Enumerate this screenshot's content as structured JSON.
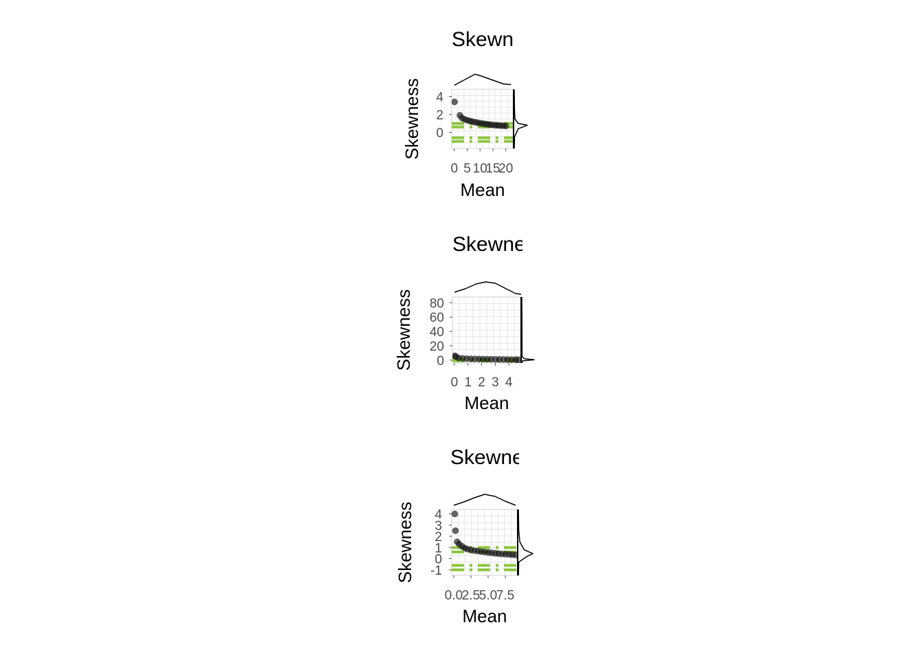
{
  "chart_data": [
    {
      "type": "scatter",
      "title": "Skewness",
      "xlabel": "Mean",
      "ylabel": "Skewness",
      "xlim": [
        -1,
        23
      ],
      "ylim": [
        -1.8,
        4.8
      ],
      "xticks": [
        0,
        5,
        10,
        15,
        20
      ],
      "xtick_labels": [
        "0",
        "5",
        "10",
        "15",
        "20"
      ],
      "yticks": [
        0,
        2,
        4
      ],
      "ytick_labels": [
        "0",
        "2",
        "4"
      ],
      "grid": true,
      "points": [
        [
          0.1,
          3.4
        ],
        [
          2.2,
          1.9
        ],
        [
          3,
          1.6
        ],
        [
          4,
          1.45
        ],
        [
          5,
          1.35
        ],
        [
          6,
          1.28
        ],
        [
          7,
          1.2
        ],
        [
          8,
          1.14
        ],
        [
          9,
          1.08
        ],
        [
          10,
          1.02
        ],
        [
          11,
          0.98
        ],
        [
          12,
          0.94
        ],
        [
          13,
          0.9
        ],
        [
          14,
          0.86
        ],
        [
          15,
          0.82
        ],
        [
          16,
          0.8
        ],
        [
          17,
          0.78
        ],
        [
          18,
          0.76
        ],
        [
          19,
          0.74
        ],
        [
          20,
          0.72
        ]
      ],
      "reference_bands": [
        {
          "y": 1.0,
          "color": "#8dc63f"
        },
        {
          "y": 0.6,
          "color": "#8dc63f"
        },
        {
          "y": -0.6,
          "color": "#8dc63f"
        },
        {
          "y": -1.0,
          "color": "#8dc63f"
        }
      ],
      "marginal_x_density": [
        [
          0,
          0.2
        ],
        [
          2,
          0.4
        ],
        [
          5,
          0.7
        ],
        [
          8,
          1.0
        ],
        [
          10,
          0.9
        ],
        [
          13,
          0.7
        ],
        [
          16,
          0.5
        ],
        [
          19,
          0.3
        ],
        [
          22,
          0.25
        ]
      ],
      "marginal_y_density": [
        [
          -1.8,
          0.0
        ],
        [
          -0.5,
          0.02
        ],
        [
          0.4,
          0.3
        ],
        [
          0.8,
          1.0
        ],
        [
          1.0,
          0.3
        ],
        [
          1.5,
          0.05
        ],
        [
          2.5,
          0.02
        ],
        [
          4.8,
          0.0
        ]
      ]
    },
    {
      "type": "scatter",
      "title": "Skewness",
      "xlabel": "Mean",
      "ylabel": "Skewness",
      "xlim": [
        -0.15,
        4.9
      ],
      "ylim": [
        -4,
        88
      ],
      "xticks": [
        0,
        1,
        2,
        3,
        4
      ],
      "xtick_labels": [
        "0",
        "1",
        "2",
        "3",
        "4"
      ],
      "yticks": [
        0,
        20,
        40,
        60,
        80
      ],
      "ytick_labels": [
        "0",
        "20",
        "40",
        "60",
        "80"
      ],
      "grid": true,
      "points": [
        [
          0.03,
          6.0
        ],
        [
          0.1,
          5.0
        ],
        [
          0.3,
          3.0
        ],
        [
          0.6,
          2.5
        ],
        [
          0.9,
          2.0
        ],
        [
          1.2,
          1.8
        ],
        [
          1.5,
          1.6
        ],
        [
          1.8,
          1.5
        ],
        [
          2.1,
          1.4
        ],
        [
          2.4,
          1.3
        ],
        [
          2.7,
          1.2
        ],
        [
          3.0,
          1.1
        ],
        [
          3.3,
          1.0
        ],
        [
          3.6,
          0.9
        ],
        [
          3.9,
          0.8
        ],
        [
          4.2,
          0.7
        ],
        [
          4.5,
          0.6
        ],
        [
          4.7,
          0.5
        ]
      ],
      "reference_bands": [
        {
          "y": 1.0,
          "color": "#8dc63f"
        },
        {
          "y": -1.0,
          "color": "#8dc63f"
        }
      ],
      "marginal_x_density": [
        [
          0,
          0.25
        ],
        [
          0.8,
          0.5
        ],
        [
          1.6,
          0.85
        ],
        [
          2.3,
          1.0
        ],
        [
          3.0,
          0.9
        ],
        [
          3.8,
          0.5
        ],
        [
          4.5,
          0.15
        ],
        [
          4.9,
          0.1
        ]
      ],
      "marginal_y_density": [
        [
          -4,
          0.0
        ],
        [
          -1,
          0.05
        ],
        [
          0.5,
          1.0
        ],
        [
          2,
          0.2
        ],
        [
          5,
          0.02
        ],
        [
          88,
          0.0
        ]
      ]
    },
    {
      "type": "scatter",
      "title": "Skewness",
      "xlabel": "Mean",
      "ylabel": "Skewness",
      "xlim": [
        -0.3,
        9.3
      ],
      "ylim": [
        -1.5,
        4.4
      ],
      "xticks": [
        0,
        2.5,
        5,
        7.5
      ],
      "xtick_labels": [
        "0.0",
        "2.5",
        "5.0",
        "7.5"
      ],
      "yticks": [
        -1,
        0,
        1,
        2,
        3,
        4
      ],
      "ytick_labels": [
        "-1",
        "0",
        "1",
        "2",
        "3",
        "4"
      ],
      "grid": true,
      "points": [
        [
          0.15,
          4.0
        ],
        [
          0.25,
          2.5
        ],
        [
          0.5,
          1.5
        ],
        [
          0.8,
          1.3
        ],
        [
          1.2,
          1.1
        ],
        [
          1.6,
          0.95
        ],
        [
          2.0,
          0.85
        ],
        [
          2.5,
          0.78
        ],
        [
          3.0,
          0.72
        ],
        [
          3.5,
          0.68
        ],
        [
          4.0,
          0.63
        ],
        [
          4.5,
          0.6
        ],
        [
          5.0,
          0.55
        ],
        [
          5.5,
          0.52
        ],
        [
          6.0,
          0.48
        ],
        [
          6.5,
          0.45
        ],
        [
          7.0,
          0.42
        ],
        [
          7.5,
          0.4
        ],
        [
          8.0,
          0.38
        ],
        [
          8.5,
          0.35
        ],
        [
          9.0,
          0.33
        ]
      ],
      "reference_bands": [
        {
          "y": 1.0,
          "color": "#8dc63f"
        },
        {
          "y": 0.6,
          "color": "#8dc63f"
        },
        {
          "y": -0.6,
          "color": "#8dc63f"
        },
        {
          "y": -1.0,
          "color": "#8dc63f"
        }
      ],
      "marginal_x_density": [
        [
          0,
          0.2
        ],
        [
          1.5,
          0.45
        ],
        [
          3,
          0.75
        ],
        [
          4.5,
          1.0
        ],
        [
          6,
          0.85
        ],
        [
          7.5,
          0.5
        ],
        [
          9,
          0.2
        ]
      ],
      "marginal_y_density": [
        [
          -1.5,
          0.0
        ],
        [
          -0.3,
          0.03
        ],
        [
          0.2,
          0.6
        ],
        [
          0.45,
          1.0
        ],
        [
          0.8,
          0.4
        ],
        [
          1.5,
          0.1
        ],
        [
          2.5,
          0.03
        ],
        [
          4.4,
          0.0
        ]
      ]
    }
  ]
}
